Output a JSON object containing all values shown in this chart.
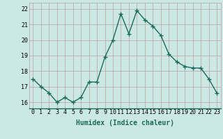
{
  "x": [
    0,
    1,
    2,
    3,
    4,
    5,
    6,
    7,
    8,
    9,
    10,
    11,
    12,
    13,
    14,
    15,
    16,
    17,
    18,
    19,
    20,
    21,
    22,
    23
  ],
  "y": [
    17.5,
    17.0,
    16.6,
    16.0,
    16.3,
    16.0,
    16.3,
    17.3,
    17.3,
    18.9,
    20.0,
    21.7,
    20.4,
    21.9,
    21.3,
    20.9,
    20.3,
    19.1,
    18.6,
    18.3,
    18.2,
    18.2,
    17.5,
    16.6
  ],
  "line_color": "#1a6b5a",
  "marker": "+",
  "marker_size": 4,
  "marker_lw": 1.0,
  "background_color": "#cce8e4",
  "grid_color_h": "#b8a0a0",
  "grid_color_v": "#c8b0b0",
  "xlabel": "Humidex (Indice chaleur)",
  "ylim": [
    15.6,
    22.4
  ],
  "xlim": [
    -0.5,
    23.5
  ],
  "yticks": [
    16,
    17,
    18,
    19,
    20,
    21,
    22
  ],
  "xticks": [
    0,
    1,
    2,
    3,
    4,
    5,
    6,
    7,
    8,
    9,
    10,
    11,
    12,
    13,
    14,
    15,
    16,
    17,
    18,
    19,
    20,
    21,
    22,
    23
  ],
  "xlabel_fontsize": 7,
  "tick_fontsize": 6,
  "linewidth": 1.0
}
